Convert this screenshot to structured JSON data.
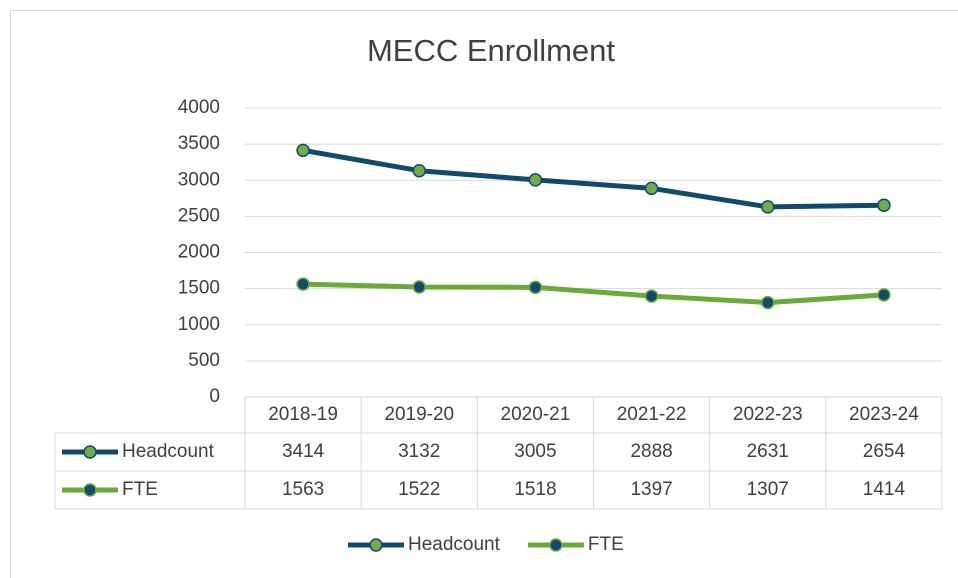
{
  "chart_data": {
    "type": "line",
    "title": "MECC Enrollment",
    "categories": [
      "2018-19",
      "2019-20",
      "2020-21",
      "2021-22",
      "2022-23",
      "2023-24"
    ],
    "series": [
      {
        "name": "Headcount",
        "color": "#124a6e",
        "marker_color": "#70ad47",
        "values": [
          3414,
          3132,
          3005,
          2888,
          2631,
          2654
        ]
      },
      {
        "name": "FTE",
        "color": "#6aaa3a",
        "marker_color": "#124a6e",
        "values": [
          1563,
          1522,
          1518,
          1397,
          1307,
          1414
        ]
      }
    ],
    "ylim": [
      0,
      4000
    ],
    "yticks": [
      0,
      500,
      1000,
      1500,
      2000,
      2500,
      3000,
      3500,
      4000
    ],
    "grid": true,
    "data_table": true,
    "legend": "bottom"
  }
}
